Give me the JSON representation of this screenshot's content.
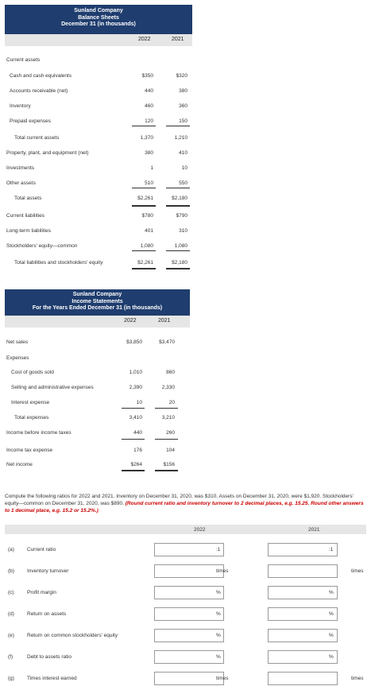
{
  "balance_sheet": {
    "title": [
      "Sunland Company",
      "Balance Sheets",
      "December 31 (in thousands)"
    ],
    "years": [
      "2022",
      "2021"
    ],
    "rows": [
      {
        "label": "Current assets",
        "v2022": "",
        "v2021": ""
      },
      {
        "label": "Cash and cash equivalents",
        "v2022": "$350",
        "v2021": "$320"
      },
      {
        "label": "Accounts receivable (net)",
        "v2022": "440",
        "v2021": "380"
      },
      {
        "label": "Inventory",
        "v2022": "460",
        "v2021": "360"
      },
      {
        "label": "Prepaid expenses",
        "v2022": "120",
        "v2021": "150"
      },
      {
        "label": "Total current assets",
        "v2022": "1,370",
        "v2021": "1,210"
      },
      {
        "label": "Property, plant, and equipment (net)",
        "v2022": "380",
        "v2021": "410"
      },
      {
        "label": "Investments",
        "v2022": "1",
        "v2021": "10"
      },
      {
        "label": "Other assets",
        "v2022": "510",
        "v2021": "550"
      },
      {
        "label": "Total assets",
        "v2022": "$2,261",
        "v2021": "$2,180"
      },
      {
        "label": "Current liabilities",
        "v2022": "$780",
        "v2021": "$790"
      },
      {
        "label": "Long-term liabilities",
        "v2022": "401",
        "v2021": "310"
      },
      {
        "label": "Stockholders' equity—common",
        "v2022": "1,080",
        "v2021": "1,080"
      },
      {
        "label": "Total liabilities and stockholders' equity",
        "v2022": "$2,261",
        "v2021": "$2,180"
      }
    ]
  },
  "income_statement": {
    "title": [
      "Sunland Company",
      "Income Statements",
      "For the Years Ended December 31 (in thousands)"
    ],
    "years": [
      "2022",
      "2021"
    ],
    "rows": [
      {
        "label": "Net sales",
        "v2022": "$3,850",
        "v2021": "$3,470"
      },
      {
        "label": "Expenses",
        "v2022": "",
        "v2021": ""
      },
      {
        "label": "Cost of goods sold",
        "v2022": "1,010",
        "v2021": "860"
      },
      {
        "label": "Selling and administrative expenses",
        "v2022": "2,390",
        "v2021": "2,330"
      },
      {
        "label": "Interest expense",
        "v2022": "10",
        "v2021": "20"
      },
      {
        "label": "Total expenses",
        "v2022": "3,410",
        "v2021": "3,210"
      },
      {
        "label": "Income before income taxes",
        "v2022": "440",
        "v2021": "260"
      },
      {
        "label": "Income tax expense",
        "v2022": "176",
        "v2021": "104"
      },
      {
        "label": "Net income",
        "v2022": "$264",
        "v2021": "$156"
      }
    ]
  },
  "instructions": {
    "text": "Compute the following ratios for 2022 and 2021. Inventory on December 31, 2020, was $310. Assets on December 31, 2020, were $1,920. Stockholders' equity—common on December 31, 2020, was $890.",
    "note": "(Round current ratio and inventory turnover to 2 decimal places, e.g. 15.25. Round other answers to 1 decimal place, e.g. 15.2 or 15.2%.)"
  },
  "ratios": {
    "years": [
      "2022",
      "2021"
    ],
    "items": [
      {
        "letter": "(a)",
        "label": "Current ratio",
        "unit": ":1"
      },
      {
        "letter": "(b)",
        "label": "Inventory turnover",
        "unit": "times"
      },
      {
        "letter": "(c)",
        "label": "Profit margin",
        "unit": "%"
      },
      {
        "letter": "(d)",
        "label": "Return on assets",
        "unit": "%"
      },
      {
        "letter": "(e)",
        "label": "Return on common stockholders' equity",
        "unit": "%"
      },
      {
        "letter": "(f)",
        "label": "Debt to assets ratio",
        "unit": "%"
      },
      {
        "letter": "(g)",
        "label": "Times interest earned",
        "unit": "times"
      }
    ]
  }
}
